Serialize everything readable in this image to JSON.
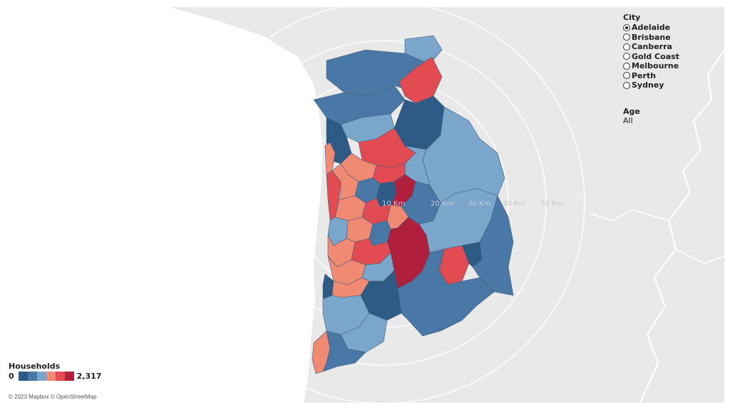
{
  "map": {
    "ring_labels": [
      "10 Km",
      "20 Km",
      "30 Km",
      "40 Km",
      "50 Km"
    ],
    "attribution": "© 2023 Mapbox © OpenStreetMap"
  },
  "filters": {
    "city": {
      "title": "City",
      "options": [
        "Adelaide",
        "Brisbane",
        "Canberra",
        "Gold Coast",
        "Melbourne",
        "Perth",
        "Sydney"
      ],
      "selected": "Adelaide"
    },
    "age": {
      "title": "Age",
      "value": "All"
    }
  },
  "legend": {
    "title": "Households",
    "min": "0",
    "max": "2,317",
    "colors": [
      "#2e5b86",
      "#4a78a6",
      "#7aa6cc",
      "#f08a72",
      "#e34b52",
      "#b01f3c"
    ]
  },
  "colors": {
    "land": "#e9e9e9",
    "water": "#ffffff",
    "ring": "#ffffff",
    "region_stroke": "#3f5d7a"
  }
}
